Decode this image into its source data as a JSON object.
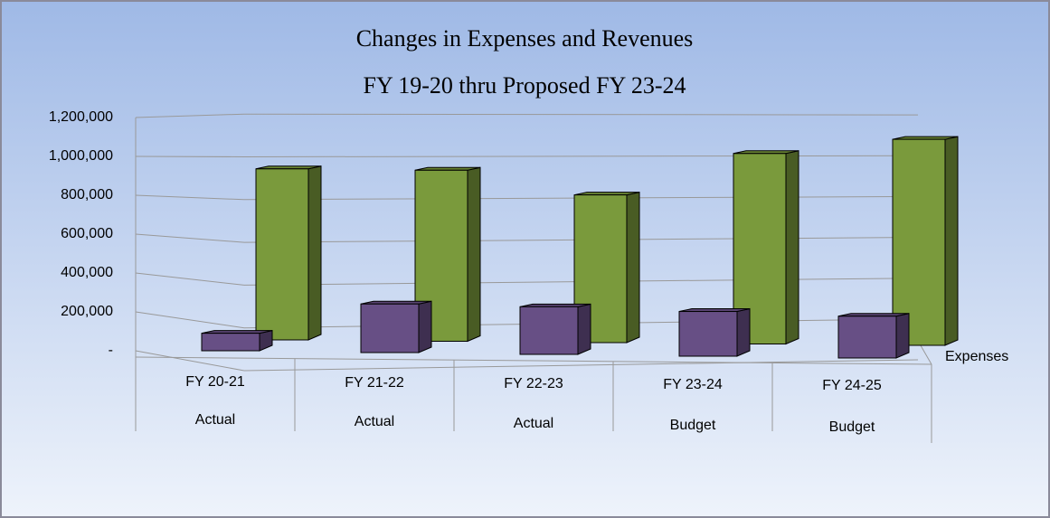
{
  "chart_data": {
    "type": "bar3d",
    "title": "Changes in Expenses and Revenues",
    "subtitle": "FY 19-20 thru Proposed FY 23-24",
    "categories": [
      "FY 20-21",
      "FY 21-22",
      "FY 22-23",
      "FY 23-24",
      "FY 24-25"
    ],
    "category_sublabels": [
      "Actual",
      "Actual",
      "Actual",
      "Budget",
      "Budget"
    ],
    "series": [
      {
        "name": "Expenses",
        "color": "#674f85",
        "values": [
          90000,
          250000,
          245000,
          230000,
          215000
        ]
      },
      {
        "name": null,
        "color": "#7a9a3c",
        "values": [
          880000,
          880000,
          760000,
          980000,
          1060000
        ]
      }
    ],
    "ylim": [
      0,
      1200000
    ],
    "yticks": [
      {
        "value": 0,
        "label": "-"
      },
      {
        "value": 200000,
        "label": "200,000"
      },
      {
        "value": 400000,
        "label": "400,000"
      },
      {
        "value": 600000,
        "label": "600,000"
      },
      {
        "value": 800000,
        "label": "800,000"
      },
      {
        "value": 1000000,
        "label": "1,000,000"
      },
      {
        "value": 1200000,
        "label": "1,200,000"
      }
    ],
    "grid": true
  }
}
